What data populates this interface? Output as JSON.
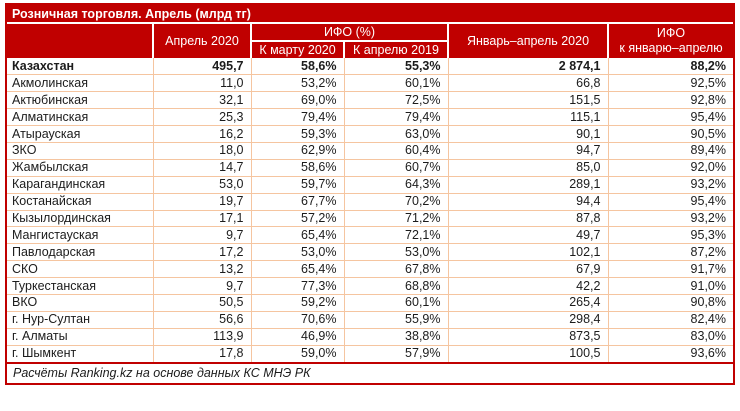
{
  "title": "Розничная торговля. Апрель (млрд тг)",
  "source_note": "Расчёты Ranking.kz на основе данных КС МНЭ РК",
  "header": {
    "region_label": "",
    "april_2020": "Апрель 2020",
    "ifo_group": "ИФО (%)",
    "to_march_2020": "К марту 2020",
    "to_april_2019": "К апрелю 2019",
    "jan_apr_2020": "Январь–апрель 2020",
    "ifo_jan_apr_line1": "ИФО",
    "ifo_jan_apr_line2": "к январю–апрелю"
  },
  "colors": {
    "header_red": "#C00000",
    "grid_peach": "#F5C5A0",
    "text_dark": "#1C1C1C",
    "header_text": "#FFFFFF"
  },
  "chart_data": {
    "type": "table",
    "title": "Розничная торговля. Апрель (млрд тг)",
    "columns": [
      "",
      "Апрель 2020",
      "К марту 2020",
      "К апрелю 2019",
      "Январь–апрель 2020",
      "ИФО к январю–апрелю"
    ],
    "column_groups": [
      {
        "label": "ИФО (%)",
        "columns": [
          "К марту 2020",
          "К апрелю 2019"
        ]
      }
    ],
    "total_row_index": 0,
    "rows": [
      [
        "Казахстан",
        "495,7",
        "58,6%",
        "55,3%",
        "2 874,1",
        "88,2%"
      ],
      [
        "Акмолинская",
        "11,0",
        "53,2%",
        "60,1%",
        "66,8",
        "92,5%"
      ],
      [
        "Актюбинская",
        "32,1",
        "69,0%",
        "72,5%",
        "151,5",
        "92,8%"
      ],
      [
        "Алматинская",
        "25,3",
        "79,4%",
        "79,4%",
        "115,1",
        "95,4%"
      ],
      [
        "Атырауская",
        "16,2",
        "59,3%",
        "63,0%",
        "90,1",
        "90,5%"
      ],
      [
        "ЗКО",
        "18,0",
        "62,9%",
        "60,4%",
        "94,7",
        "89,4%"
      ],
      [
        "Жамбылская",
        "14,7",
        "58,6%",
        "60,7%",
        "85,0",
        "92,0%"
      ],
      [
        "Карагандинская",
        "53,0",
        "59,7%",
        "64,3%",
        "289,1",
        "93,2%"
      ],
      [
        "Костанайская",
        "19,7",
        "67,7%",
        "70,2%",
        "94,4",
        "95,4%"
      ],
      [
        "Кызылординская",
        "17,1",
        "57,2%",
        "71,2%",
        "87,8",
        "93,2%"
      ],
      [
        "Мангистауская",
        "9,7",
        "65,4%",
        "72,1%",
        "49,7",
        "95,3%"
      ],
      [
        "Павлодарская",
        "17,2",
        "53,0%",
        "53,0%",
        "102,1",
        "87,2%"
      ],
      [
        "СКО",
        "13,2",
        "65,4%",
        "67,8%",
        "67,9",
        "91,7%"
      ],
      [
        "Туркестанская",
        "9,7",
        "77,3%",
        "68,8%",
        "42,2",
        "91,0%"
      ],
      [
        "ВКО",
        "50,5",
        "59,2%",
        "60,1%",
        "265,4",
        "90,8%"
      ],
      [
        "г. Нур-Султан",
        "56,6",
        "70,6%",
        "55,9%",
        "298,4",
        "82,4%"
      ],
      [
        "г. Алматы",
        "113,9",
        "46,9%",
        "38,8%",
        "873,5",
        "83,0%"
      ],
      [
        "г. Шымкент",
        "17,8",
        "59,0%",
        "57,9%",
        "100,5",
        "93,6%"
      ]
    ]
  }
}
